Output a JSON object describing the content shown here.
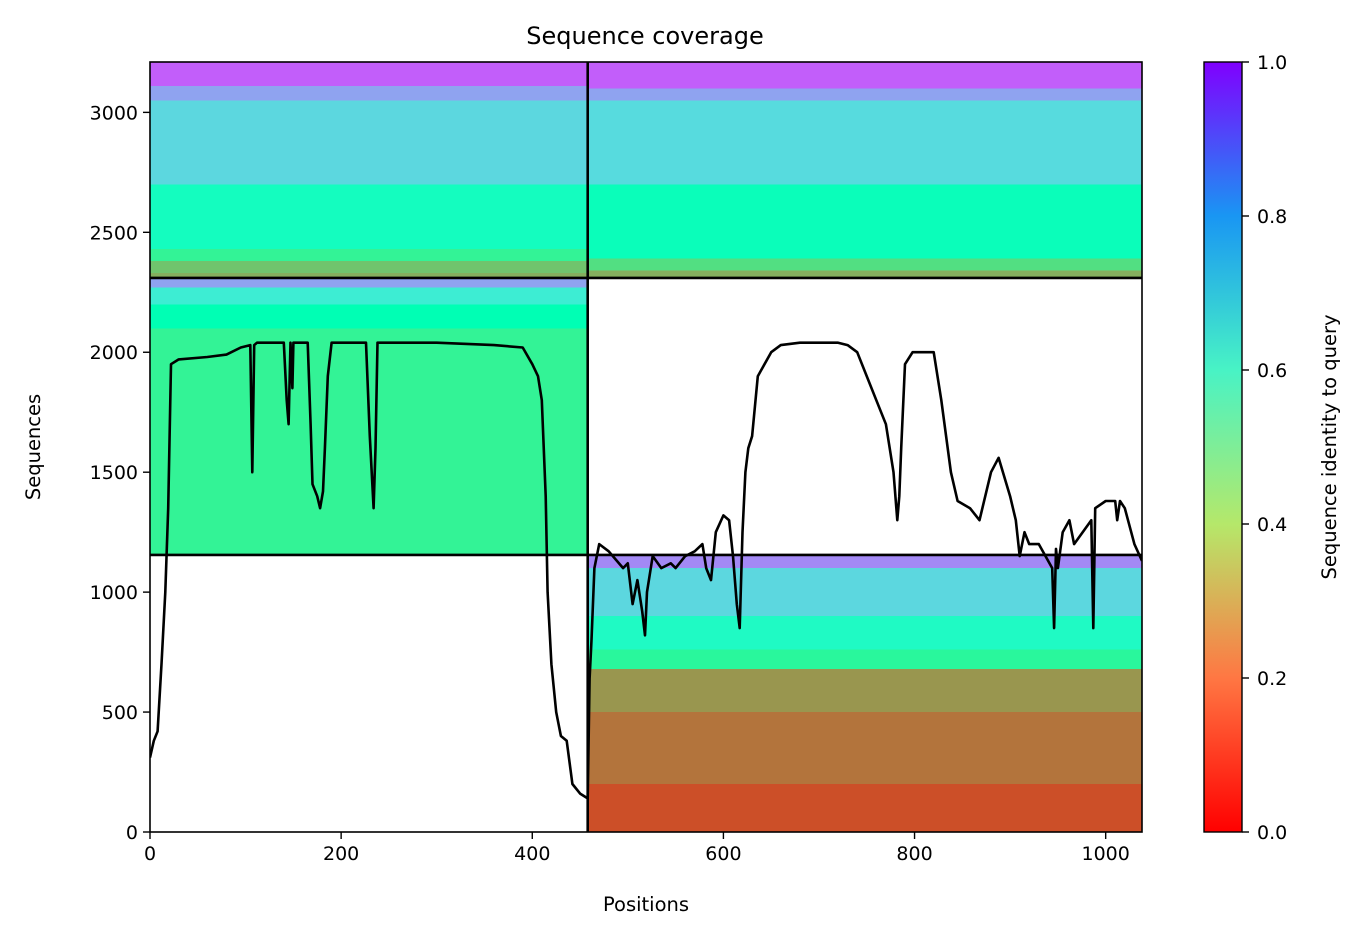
{
  "chart_data": {
    "type": "heatmap",
    "title": "Sequence coverage",
    "xlabel": "Positions",
    "ylabel": "Sequences",
    "colorbar_label": "Sequence identity to query",
    "xlim": [
      0,
      1038
    ],
    "ylim": [
      0,
      3210
    ],
    "xticks": [
      0,
      200,
      400,
      600,
      800,
      1000
    ],
    "yticks": [
      0,
      500,
      1000,
      1500,
      2000,
      2500,
      3000
    ],
    "colorbar_ticks": [
      "0.0",
      "0.2",
      "0.4",
      "0.6",
      "0.8",
      "1.0"
    ],
    "colormap": "rainbow_r",
    "grid": false,
    "chain_boundaries": {
      "x": 458,
      "y": [
        1155,
        2310
      ]
    },
    "panels": [
      {
        "x0": 0,
        "x1": 458,
        "y0": 2310,
        "y1": 3210,
        "bands": [
          {
            "from": 2310,
            "to": 2330,
            "identity": 0.24
          },
          {
            "from": 2330,
            "to": 2380,
            "identity": 0.28
          },
          {
            "from": 2380,
            "to": 2430,
            "identity": 0.4
          },
          {
            "from": 2430,
            "to": 2700,
            "identity": 0.54
          },
          {
            "from": 2700,
            "to": 3050,
            "identity": 0.68
          },
          {
            "from": 3050,
            "to": 3110,
            "identity": 0.78
          },
          {
            "from": 3110,
            "to": 3210,
            "identity": 0.88
          }
        ]
      },
      {
        "x0": 458,
        "x1": 1038,
        "y0": 2310,
        "y1": 3210,
        "bands": [
          {
            "from": 2310,
            "to": 2340,
            "identity": 0.24
          },
          {
            "from": 2340,
            "to": 2390,
            "identity": 0.34
          },
          {
            "from": 2390,
            "to": 2700,
            "identity": 0.52
          },
          {
            "from": 2700,
            "to": 3050,
            "identity": 0.67
          },
          {
            "from": 3050,
            "to": 3100,
            "identity": 0.78
          },
          {
            "from": 3100,
            "to": 3210,
            "identity": 0.88
          }
        ]
      },
      {
        "x0": 0,
        "x1": 458,
        "y0": 1155,
        "y1": 2310,
        "bands": [
          {
            "from": 1155,
            "to": 2100,
            "identity": 0.4
          },
          {
            "from": 2100,
            "to": 2200,
            "identity": 0.5
          },
          {
            "from": 2200,
            "to": 2270,
            "identity": 0.62
          },
          {
            "from": 2270,
            "to": 2310,
            "identity": 0.78
          }
        ]
      },
      {
        "x0": 458,
        "x1": 1038,
        "y0": 0,
        "y1": 1155,
        "bands": [
          {
            "from": 0,
            "to": 200,
            "identity": 0.1
          },
          {
            "from": 200,
            "to": 500,
            "identity": 0.15
          },
          {
            "from": 500,
            "to": 680,
            "identity": 0.2
          },
          {
            "from": 680,
            "to": 760,
            "identity": 0.42
          },
          {
            "from": 760,
            "to": 900,
            "identity": 0.56
          },
          {
            "from": 900,
            "to": 1100,
            "identity": 0.68
          },
          {
            "from": 1100,
            "to": 1155,
            "identity": 0.82
          }
        ]
      }
    ],
    "series": [
      {
        "type": "line",
        "x": [
          0,
          4,
          8,
          12,
          16,
          19,
          22,
          30,
          60,
          80,
          95,
          105,
          107,
          109,
          112,
          140,
          143,
          145,
          147,
          149,
          150,
          152,
          165,
          168,
          170,
          175,
          178,
          181,
          183,
          186,
          190,
          200,
          226,
          230,
          232,
          234,
          236,
          238,
          242,
          300,
          360,
          390,
          400,
          406,
          410,
          414,
          416,
          420,
          425,
          430,
          436,
          442,
          450,
          458,
          460,
          462,
          465,
          470,
          480,
          495,
          500,
          505,
          510,
          515,
          518,
          520,
          526,
          535,
          545,
          550,
          560,
          570,
          578,
          582,
          587,
          592,
          600,
          606,
          610,
          614,
          617,
          620,
          623,
          626,
          630,
          636,
          650,
          660,
          680,
          700,
          720,
          730,
          740,
          760,
          770,
          778,
          782,
          784,
          786,
          790,
          798,
          805,
          820,
          828,
          838,
          845,
          858,
          868,
          880,
          888,
          900,
          906,
          910,
          915,
          920,
          930,
          944,
          946,
          948,
          950,
          955,
          962,
          967,
          985,
          987,
          989,
          1000,
          1010,
          1012,
          1015,
          1020,
          1030,
          1038
        ],
        "y": [
          310,
          380,
          420,
          700,
          1000,
          1350,
          1950,
          1970,
          1980,
          1990,
          2020,
          2030,
          1500,
          2030,
          2040,
          2040,
          1800,
          1700,
          2040,
          1850,
          2040,
          2040,
          2040,
          1700,
          1450,
          1400,
          1350,
          1420,
          1600,
          1900,
          2040,
          2040,
          2040,
          1650,
          1500,
          1350,
          1600,
          2040,
          2040,
          2040,
          2030,
          2020,
          1950,
          1900,
          1800,
          1400,
          1000,
          700,
          500,
          400,
          380,
          200,
          160,
          140,
          640,
          800,
          1100,
          1200,
          1170,
          1100,
          1120,
          950,
          1050,
          920,
          820,
          1000,
          1150,
          1100,
          1120,
          1100,
          1150,
          1170,
          1200,
          1100,
          1050,
          1250,
          1320,
          1300,
          1150,
          950,
          850,
          1250,
          1500,
          1600,
          1650,
          1900,
          2000,
          2030,
          2040,
          2040,
          2040,
          2030,
          2000,
          1800,
          1700,
          1500,
          1300,
          1400,
          1600,
          1950,
          2000,
          2000,
          2000,
          1800,
          1500,
          1380,
          1350,
          1300,
          1500,
          1560,
          1400,
          1300,
          1150,
          1250,
          1200,
          1200,
          1100,
          850,
          1180,
          1100,
          1250,
          1300,
          1200,
          1300,
          850,
          1350,
          1380,
          1380,
          1300,
          1380,
          1350,
          1200,
          1130
        ]
      }
    ]
  }
}
